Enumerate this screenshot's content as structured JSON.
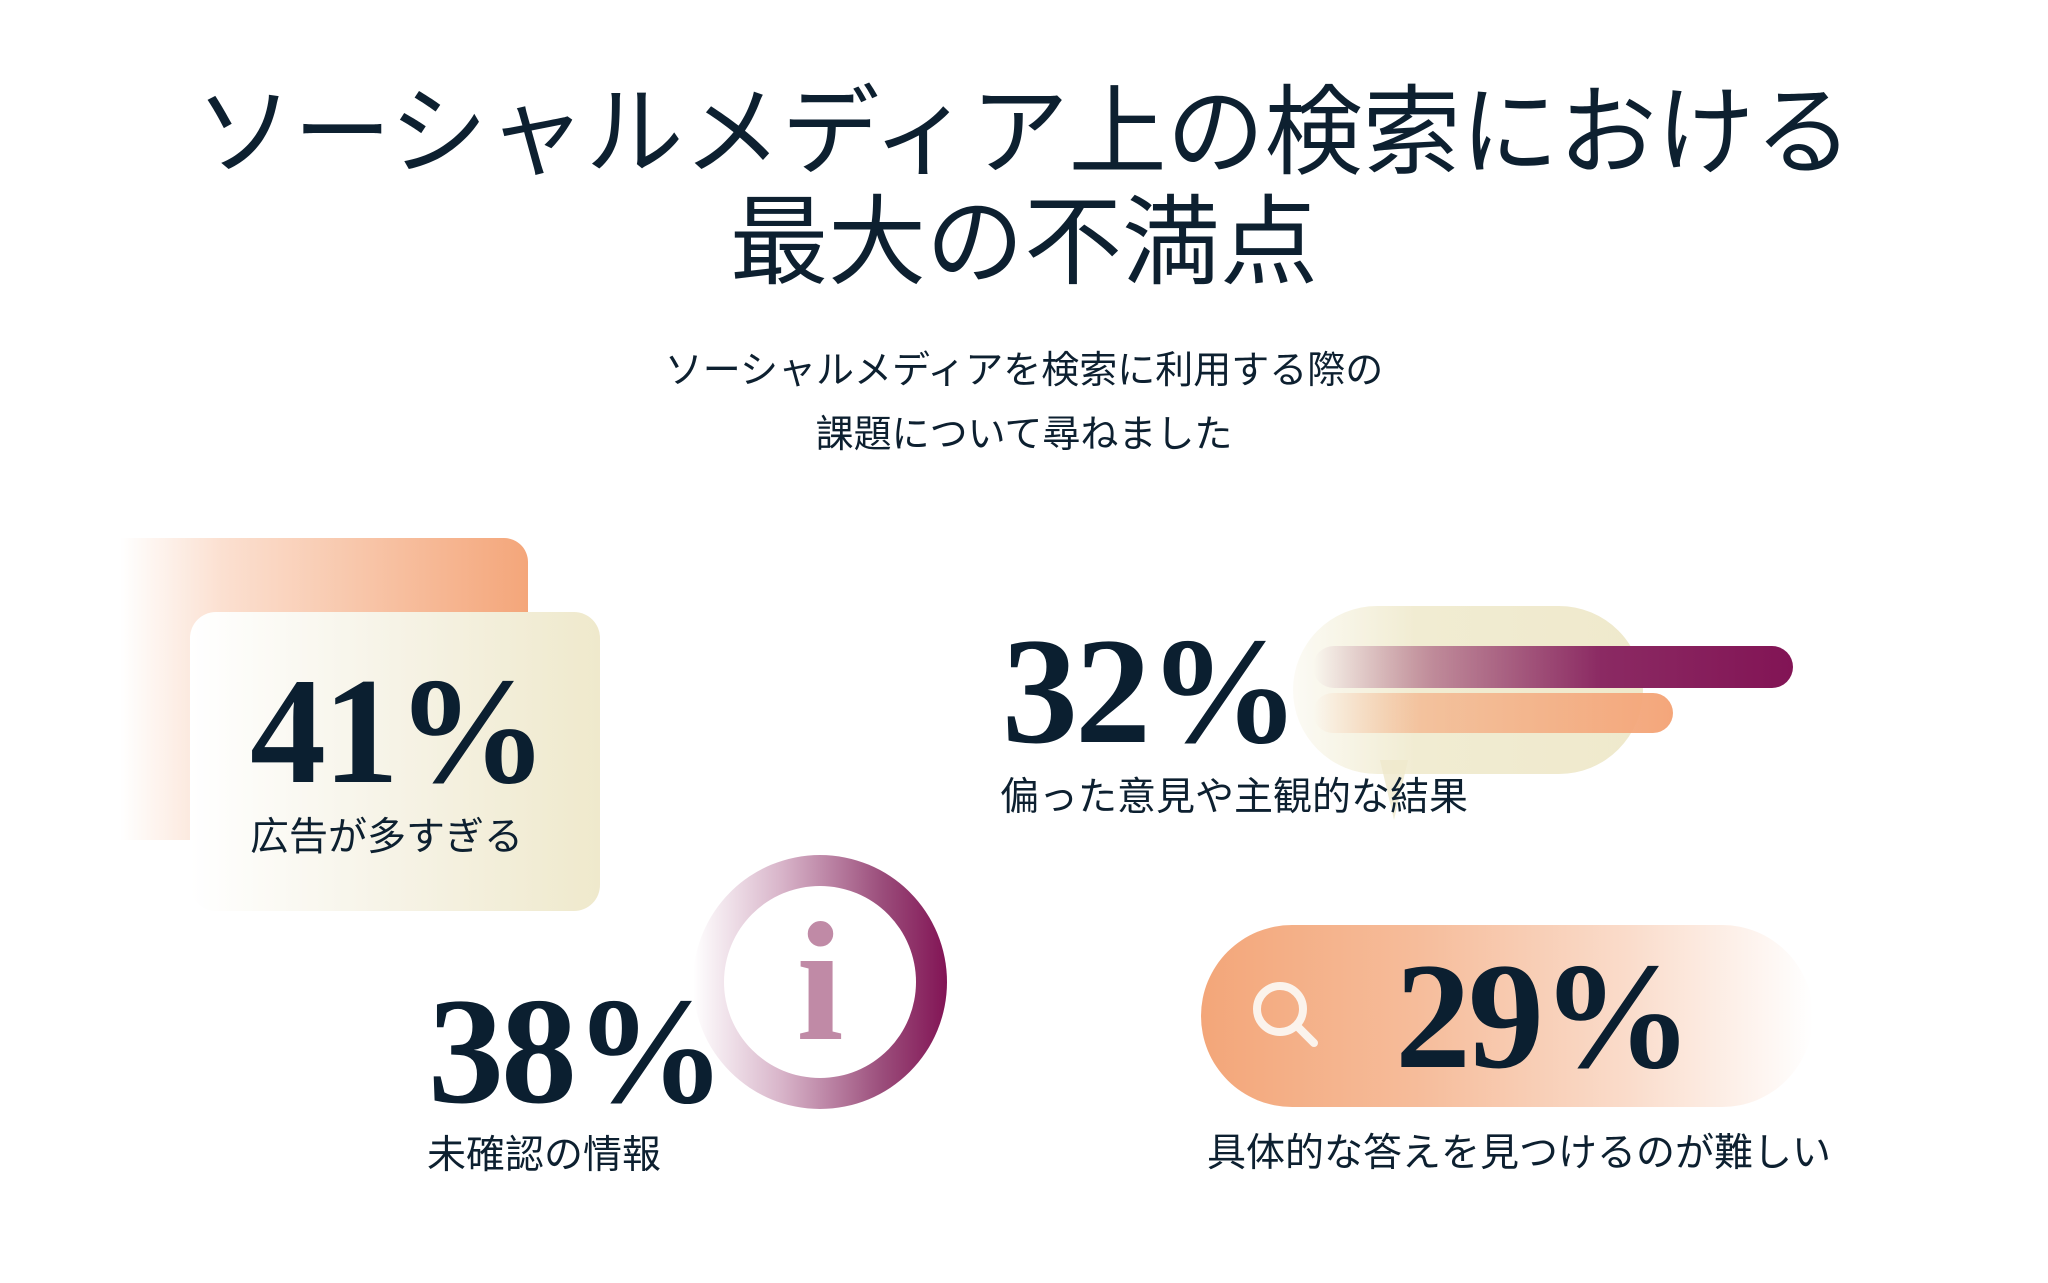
{
  "header": {
    "title_line1": "ソーシャルメディア上の検索における",
    "title_line2": "最大の不満点",
    "subtitle_line1": "ソーシャルメディアを検索に利用する際の",
    "subtitle_line2": "課題について尋ねました"
  },
  "stats": [
    {
      "value": "41%",
      "label": "広告が多すぎる",
      "icon": "stacked-cards"
    },
    {
      "value": "32%",
      "label": "偏った意見や主観的な結果",
      "icon": "speech-bubble-bars"
    },
    {
      "value": "38%",
      "label": "未確認の情報",
      "icon": "info-icon",
      "icon_glyph": "i"
    },
    {
      "value": "29%",
      "label": "具体的な答えを見つけるのが難しい",
      "icon": "search-icon"
    }
  ],
  "colors": {
    "text": "#0d2030",
    "orange": "#f4a67a",
    "cream": "#efe9cc",
    "plum": "#821455",
    "mauve": "#c08aa6"
  }
}
